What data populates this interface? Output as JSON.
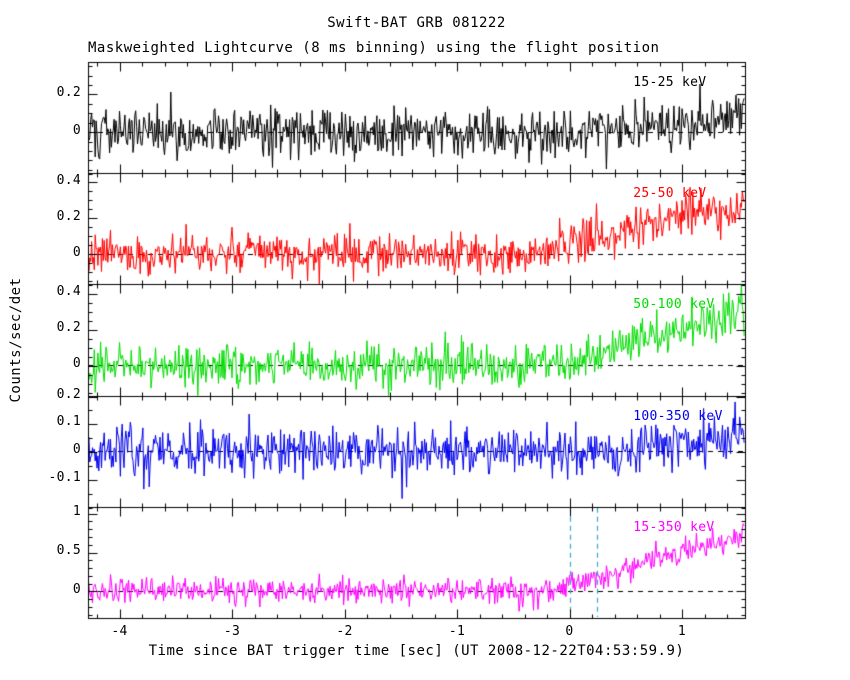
{
  "chart_data": {
    "type": "line",
    "title": "Swift-BAT GRB 081222",
    "subtitle": "Maskweighted Lightcurve (8 ms binning) using the flight position",
    "xlabel": "Time since BAT trigger time [sec] (UT 2008-12-22T04:53:59.9)",
    "ylabel": "Counts/sec/det",
    "xlim": [
      -4.28,
      1.56
    ],
    "bin_seconds": 0.008,
    "xticks": [
      -4,
      -3,
      -2,
      -1,
      0,
      1
    ],
    "xtick_labels": [
      "-4",
      "-3",
      "-2",
      "-1",
      "0",
      "1"
    ],
    "x_minor_step": 0.2,
    "background_color": "#ffffff",
    "frame_color": "#000000",
    "zero_line": {
      "y": 0,
      "style": "dashed",
      "color": "#000000"
    },
    "trigger_markers": {
      "panel_index": 4,
      "color": "#3aa6cc",
      "style": "dashed",
      "times": [
        0.0,
        0.24
      ]
    },
    "panels": [
      {
        "band_label": "15-25 keV",
        "color": "#000000",
        "ylim": [
          -0.22,
          0.37
        ],
        "yticks": [
          0,
          0.2
        ],
        "ytick_labels": [
          "0",
          "0.2"
        ],
        "y_minor_step": 0.05,
        "noise_sigma": 0.065,
        "signal": {
          "baseline": 0,
          "rise_start": 0.3,
          "rise_end": 1.56,
          "peak": 0.09
        },
        "seed": 101
      },
      {
        "band_label": "25-50 keV",
        "color": "#ff0000",
        "ylim": [
          -0.17,
          0.45
        ],
        "yticks": [
          0,
          0.2,
          0.4
        ],
        "ytick_labels": [
          "0",
          "0.2",
          "0.4"
        ],
        "y_minor_step": 0.05,
        "noise_sigma": 0.055,
        "signal": {
          "baseline": 0,
          "rise_start": -0.4,
          "rise_end": 1.2,
          "peak": 0.24
        },
        "seed": 202
      },
      {
        "band_label": "50-100 keV",
        "color": "#00dd00",
        "ylim": [
          -0.17,
          0.45
        ],
        "yticks": [
          0,
          0.2,
          0.4
        ],
        "ytick_labels": [
          "0",
          "0.2",
          "0.4"
        ],
        "y_minor_step": 0.05,
        "noise_sigma": 0.055,
        "signal": {
          "baseline": 0,
          "rise_start": -0.1,
          "rise_end": 1.56,
          "peak": 0.3
        },
        "seed": 303
      },
      {
        "band_label": "100-350 keV",
        "color": "#0000ee",
        "ylim": [
          -0.2,
          0.2
        ],
        "yticks": [
          -0.1,
          0,
          0.1,
          0.2
        ],
        "ytick_labels": [
          "-0.1",
          "0",
          "0.1",
          "0.2"
        ],
        "y_minor_step": 0.05,
        "noise_sigma": 0.045,
        "signal": {
          "baseline": 0,
          "rise_start": 0.4,
          "rise_end": 1.56,
          "peak": 0.06
        },
        "seed": 404
      },
      {
        "band_label": "15-350 keV",
        "color": "#ff00ff",
        "ylim": [
          -0.35,
          1.08
        ],
        "yticks": [
          0,
          0.5,
          1
        ],
        "ytick_labels": [
          "0",
          "0.5",
          "1"
        ],
        "y_minor_step": 0.1,
        "noise_sigma": 0.085,
        "signal": {
          "baseline": 0,
          "rise_start": -0.15,
          "rise_end": 1.56,
          "peak": 0.72
        },
        "seed": 505
      }
    ]
  }
}
